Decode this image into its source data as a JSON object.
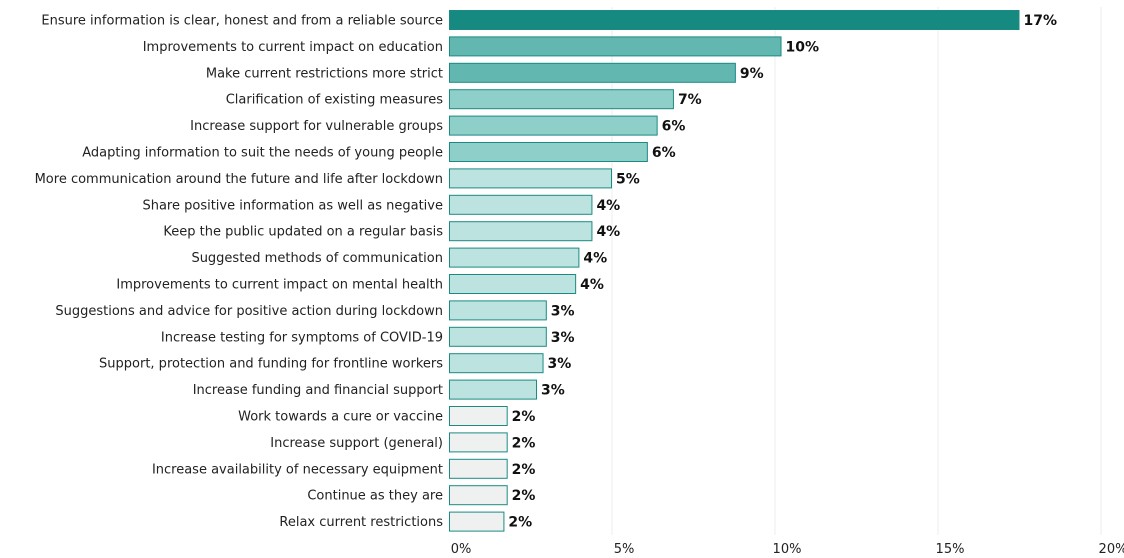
{
  "chart_data": {
    "type": "bar",
    "orientation": "horizontal",
    "title": "",
    "xlabel": "",
    "ylabel": "",
    "xlim": [
      0,
      20
    ],
    "xticks": [
      "0%",
      "5%",
      "10%",
      "15%",
      "20%"
    ],
    "xtick_values": [
      0,
      5,
      10,
      15,
      20
    ],
    "grid": true,
    "categories": [
      "Ensure information is clear, honest and from a reliable source",
      "Improvements to current impact on education",
      "Make current restrictions more strict",
      "Clarification of existing measures",
      "Increase support for vulnerable groups",
      "Adapting information to suit the needs of young people",
      "More communication around the future and life after lockdown",
      "Share positive information as well as negative",
      "Keep the public updated on a regular basis",
      "Suggested methods of communication",
      "Improvements to current impact on mental health",
      "Suggestions and advice for positive action during lockdown",
      "Increase testing for symptoms of COVID-19",
      "Support, protection and funding for frontline workers",
      "Increase funding and financial support",
      "Work towards a cure or vaccine",
      "Increase support (general)",
      "Increase availability of necessary equipment",
      "Continue as they are",
      "Relax current restrictions"
    ],
    "values": [
      17.5,
      10.2,
      8.8,
      6.9,
      6.4,
      6.1,
      5.0,
      4.4,
      4.4,
      4.0,
      3.9,
      3.0,
      3.0,
      2.9,
      2.7,
      1.8,
      1.8,
      1.8,
      1.8,
      1.7
    ],
    "value_labels": [
      "17%",
      "10%",
      "9%",
      "7%",
      "6%",
      "6%",
      "5%",
      "4%",
      "4%",
      "4%",
      "4%",
      "3%",
      "3%",
      "3%",
      "3%",
      "2%",
      "2%",
      "2%",
      "2%",
      "2%"
    ],
    "colors": {
      "stroke": "#1b8a82",
      "fills": [
        "#168a80",
        "#62b7b1",
        "#62b7b1",
        "#8ecfca",
        "#8ecfca",
        "#8ecfca",
        "#bde3e0",
        "#bde3e0",
        "#bde3e0",
        "#bde3e0",
        "#bde3e0",
        "#bde3e0",
        "#bde3e0",
        "#bde3e0",
        "#bde3e0",
        "#eff1f1",
        "#eff1f1",
        "#eff1f1",
        "#eff1f1",
        "#eff1f1"
      ]
    }
  }
}
